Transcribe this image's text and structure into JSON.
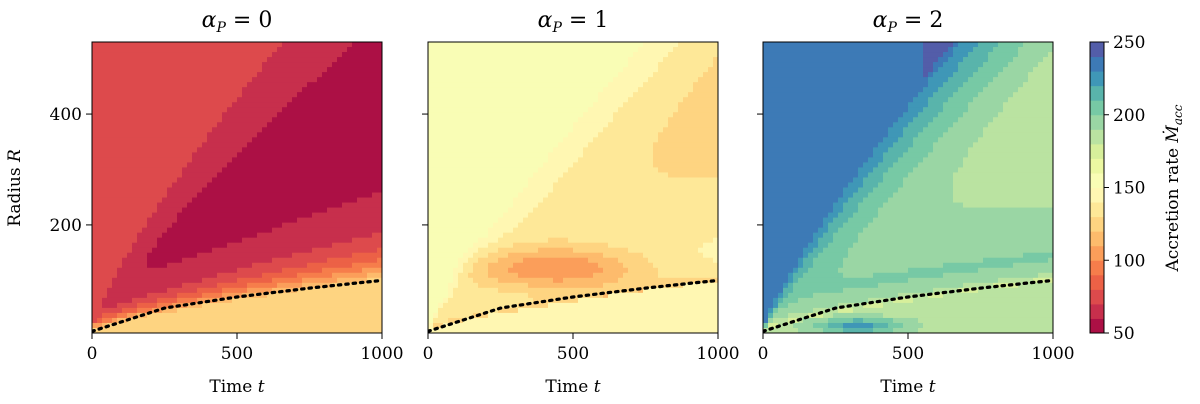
{
  "chart_data": [
    {
      "type": "heatmap",
      "title": "α_P = 0",
      "title_parts": {
        "symbol": "α",
        "sub": "P",
        "rest": " = 0"
      },
      "xlabel": "Time  t",
      "ylabel": "Radius  R",
      "xlim": [
        0,
        1000
      ],
      "ylim": [
        5,
        530
      ],
      "xticks": [
        0,
        500,
        1000
      ],
      "yticks": [
        200,
        400
      ],
      "alpha_P": 0,
      "dotted_curve": {
        "x": [
          0,
          250,
          500,
          750,
          1000
        ],
        "y": [
          8,
          50,
          70,
          86,
          100
        ]
      },
      "contour_levels_sample": [
        {
          "region": "upper-left",
          "value": 70
        },
        {
          "region": "central wedge",
          "value": 50
        },
        {
          "region": "near dotted curve",
          "value": 110
        },
        {
          "region": "below curve",
          "value": 125
        }
      ]
    },
    {
      "type": "heatmap",
      "title": "α_P = 1",
      "title_parts": {
        "symbol": "α",
        "sub": "P",
        "rest": " = 1"
      },
      "xlabel": "Time  t",
      "ylabel": "",
      "xlim": [
        0,
        1000
      ],
      "ylim": [
        5,
        530
      ],
      "xticks": [
        0,
        500,
        1000
      ],
      "yticks": [
        200,
        400
      ],
      "alpha_P": 1,
      "dotted_curve": {
        "x": [
          0,
          250,
          500,
          750,
          1000
        ],
        "y": [
          8,
          50,
          70,
          86,
          100
        ]
      },
      "contour_levels_sample": [
        {
          "region": "upper-left",
          "value": 160
        },
        {
          "region": "wedge band",
          "value": 130
        },
        {
          "region": "near curve",
          "value": 110
        },
        {
          "region": "below curve",
          "value": 155
        }
      ]
    },
    {
      "type": "heatmap",
      "title": "α_P = 2",
      "title_parts": {
        "symbol": "α",
        "sub": "P",
        "rest": " = 2"
      },
      "xlabel": "Time  t",
      "ylabel": "",
      "xlim": [
        0,
        1000
      ],
      "ylim": [
        5,
        530
      ],
      "xticks": [
        0,
        500,
        1000
      ],
      "yticks": [
        200,
        400
      ],
      "alpha_P": 2,
      "dotted_curve": {
        "x": [
          0,
          250,
          500,
          750,
          1000
        ],
        "y": [
          8,
          50,
          70,
          86,
          100
        ]
      },
      "contour_levels_sample": [
        {
          "region": "upper-left",
          "value": 240
        },
        {
          "region": "top-right",
          "value": 250
        },
        {
          "region": "wedge band",
          "value": 200
        },
        {
          "region": "near curve",
          "value": 160
        }
      ]
    }
  ],
  "colorbar": {
    "label": "Accretion rate",
    "label_symbol": "Ṁ",
    "label_sub": "acc",
    "min": 50,
    "max": 250,
    "levels": 20,
    "ticks": [
      50,
      100,
      150,
      200,
      250
    ],
    "colormap": "Spectral",
    "colormap_stops": [
      "#9e0142",
      "#d53e4f",
      "#f46d43",
      "#fdae61",
      "#fee08b",
      "#ffffbf",
      "#e6f598",
      "#abdda4",
      "#66c2a5",
      "#3288bd",
      "#5e4fa2"
    ]
  }
}
